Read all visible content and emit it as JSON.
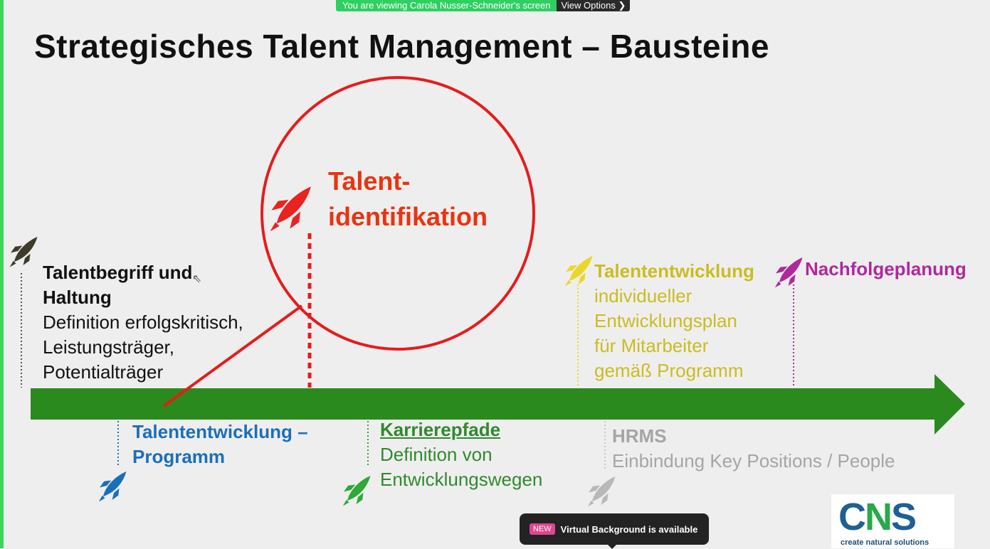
{
  "zoom": {
    "share_status": "You are viewing Carola Nusser-Schneider's screen",
    "view_options": "View Options",
    "toast_badge": "NEW",
    "toast_message": "Virtual Background is available"
  },
  "slide": {
    "title": "Strategisches Talent Management – Bausteine",
    "talentbegriff": {
      "heading_line1": "Talentbegriff und",
      "heading_line2": "Haltung",
      "line1": "Definition erfolgskritisch,",
      "line2": "Leistungsträger,",
      "line3": "Potentialträger"
    },
    "talentidentifikation": {
      "line1": "Talent-",
      "line2": "identifikation"
    },
    "talententwicklung_programm": {
      "line1": "Talententwicklung –",
      "line2": "Programm"
    },
    "karrierepfade": {
      "heading": "Karrierepfade",
      "line1": "Definition von",
      "line2": "Entwicklungswegen"
    },
    "talententwicklung": {
      "heading": "Talententwicklung",
      "line1": "individueller",
      "line2": "Entwicklungsplan",
      "line3": "für Mitarbeiter",
      "line4": "gemäß Programm"
    },
    "nachfolgeplanung": "Nachfolgeplanung",
    "hrms": {
      "heading": "HRMS",
      "line1": "Einbindung Key Positions / People"
    }
  },
  "logo": {
    "wordmark": "CNS",
    "tagline": "create natural solutions"
  },
  "colors": {
    "arrow": "#2b8a1e",
    "circle": "#e51c1c",
    "rocket_dark": "#3b3d29",
    "rocket_red": "#e82320",
    "rocket_yellow": "#e9d82a",
    "rocket_magenta": "#b0289e",
    "rocket_blue": "#1a6fba",
    "rocket_green": "#2ea836",
    "rocket_gray": "#b8b8b8",
    "logo_blue": "#1f5f96",
    "logo_green": "#2aa84a"
  }
}
